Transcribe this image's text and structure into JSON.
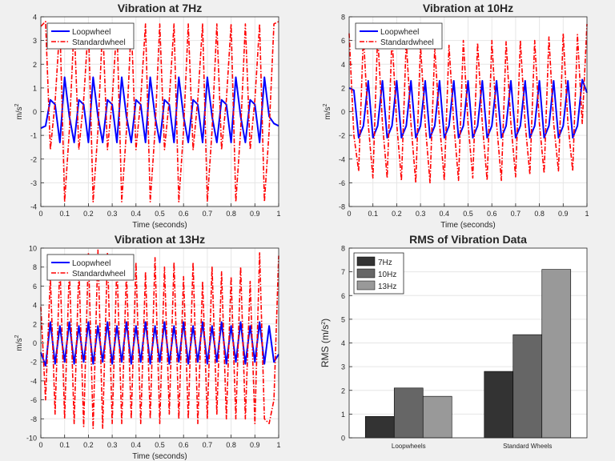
{
  "figure": {
    "background": "#f0f0f0"
  },
  "chart_data": [
    {
      "type": "line",
      "title": "Vibration at 7Hz",
      "xlabel": "Time (seconds)",
      "ylabel": "m/s",
      "ylabel_sup": "2",
      "xlim": [
        0,
        1
      ],
      "ylim": [
        -4,
        4
      ],
      "xticks": [
        0,
        0.1,
        0.2,
        0.3,
        0.4,
        0.5,
        0.6,
        0.7,
        0.8,
        0.9,
        1
      ],
      "yticks": [
        -4,
        -3,
        -2,
        -1,
        0,
        1,
        2,
        3,
        4
      ],
      "grid": true,
      "legend_position": "top-left",
      "series": [
        {
          "name": "Loopwheel",
          "color": "#0000ff",
          "style": "solid",
          "x": [
            0,
            0.02,
            0.04,
            0.06,
            0.08,
            0.1,
            0.12,
            0.14,
            0.16,
            0.18,
            0.2,
            0.22,
            0.24,
            0.26,
            0.28,
            0.3,
            0.32,
            0.34,
            0.36,
            0.38,
            0.4,
            0.42,
            0.44,
            0.46,
            0.48,
            0.5,
            0.52,
            0.54,
            0.56,
            0.58,
            0.6,
            0.62,
            0.64,
            0.66,
            0.68,
            0.7,
            0.72,
            0.74,
            0.76,
            0.78,
            0.8,
            0.82,
            0.84,
            0.86,
            0.88,
            0.9,
            0.92,
            0.94,
            0.96,
            0.98,
            1
          ],
          "y": [
            -0.7,
            -0.6,
            0.5,
            0.3,
            -1.3,
            1.45,
            -0.2,
            -1.3,
            0.5,
            0.3,
            -1.3,
            1.45,
            -0.2,
            -1.3,
            0.5,
            0.3,
            -1.3,
            1.45,
            -0.2,
            -1.3,
            0.5,
            0.3,
            -1.3,
            1.45,
            -0.2,
            -1.3,
            0.5,
            0.3,
            -1.3,
            1.45,
            -0.2,
            -1.3,
            0.5,
            0.3,
            -1.3,
            1.45,
            -0.2,
            -1.3,
            0.5,
            0.3,
            -1.3,
            1.45,
            -0.2,
            -1.3,
            0.5,
            0.3,
            -1.3,
            1.45,
            -0.2,
            -0.5,
            -0.6
          ]
        },
        {
          "name": "Standardwheel",
          "color": "#ff0000",
          "style": "dashdot",
          "x": [
            0,
            0.02,
            0.04,
            0.06,
            0.08,
            0.1,
            0.12,
            0.14,
            0.16,
            0.18,
            0.2,
            0.22,
            0.24,
            0.26,
            0.28,
            0.3,
            0.32,
            0.34,
            0.36,
            0.38,
            0.4,
            0.42,
            0.44,
            0.46,
            0.48,
            0.5,
            0.52,
            0.54,
            0.56,
            0.58,
            0.6,
            0.62,
            0.64,
            0.66,
            0.68,
            0.7,
            0.72,
            0.74,
            0.76,
            0.78,
            0.8,
            0.82,
            0.84,
            0.86,
            0.88,
            0.9,
            0.92,
            0.94,
            0.96,
            0.98,
            1
          ],
          "y": [
            3.6,
            3.8,
            -1.6,
            0.4,
            3.7,
            -3.8,
            -0.8,
            3.7,
            -1.6,
            0.5,
            3.7,
            -3.8,
            -0.8,
            3.7,
            -1.6,
            0.5,
            3.7,
            -3.8,
            -0.8,
            3.7,
            -1.6,
            0.5,
            3.7,
            -3.8,
            -0.8,
            3.7,
            -1.6,
            0.5,
            3.7,
            -3.8,
            -0.8,
            3.7,
            -1.6,
            0.5,
            3.7,
            -3.8,
            -0.8,
            3.7,
            -1.6,
            0.5,
            3.7,
            -3.8,
            -0.8,
            3.7,
            -1.6,
            0.5,
            3.7,
            -3.8,
            -0.8,
            3.7,
            3.8
          ]
        }
      ]
    },
    {
      "type": "line",
      "title": "Vibration at 10Hz",
      "xlabel": "Time (seconds)",
      "ylabel": "m/s",
      "ylabel_sup": "2",
      "xlim": [
        0,
        1
      ],
      "ylim": [
        -8,
        8
      ],
      "xticks": [
        0,
        0.1,
        0.2,
        0.3,
        0.4,
        0.5,
        0.6,
        0.7,
        0.8,
        0.9,
        1
      ],
      "yticks": [
        -8,
        -6,
        -4,
        -2,
        0,
        2,
        4,
        6,
        8
      ],
      "grid": true,
      "legend_position": "top-left",
      "series": [
        {
          "name": "Loopwheel",
          "color": "#0000ff",
          "style": "solid",
          "x": [
            0,
            0.02,
            0.04,
            0.06,
            0.08,
            0.1,
            0.12,
            0.14,
            0.16,
            0.18,
            0.2,
            0.22,
            0.24,
            0.26,
            0.28,
            0.3,
            0.32,
            0.34,
            0.36,
            0.38,
            0.4,
            0.42,
            0.44,
            0.46,
            0.48,
            0.5,
            0.52,
            0.54,
            0.56,
            0.58,
            0.6,
            0.62,
            0.64,
            0.66,
            0.68,
            0.7,
            0.72,
            0.74,
            0.76,
            0.78,
            0.8,
            0.82,
            0.84,
            0.86,
            0.88,
            0.9,
            0.92,
            0.94,
            0.96,
            0.98,
            1
          ],
          "y": [
            2,
            1.8,
            -2.2,
            -1.2,
            2.6,
            -2.2,
            -1.2,
            2.6,
            -2.2,
            -1.2,
            2.6,
            -2.2,
            -1.2,
            2.6,
            -2.2,
            -1.2,
            2.6,
            -2.2,
            -1.2,
            2.6,
            -2.2,
            -1.2,
            2.6,
            -2.2,
            -1.2,
            2.6,
            -2.2,
            -1.2,
            2.6,
            -2.2,
            -1.2,
            2.6,
            -2.2,
            -1.2,
            2.6,
            -2.2,
            -1.2,
            2.6,
            -2.2,
            -1.2,
            2.6,
            -2.2,
            -1.2,
            2.6,
            -2.2,
            -1.2,
            2.6,
            -2.2,
            -1.2,
            2.7,
            1.6
          ]
        },
        {
          "name": "Standardwheel",
          "color": "#ff0000",
          "style": "dashdot",
          "x": [
            0,
            0.02,
            0.04,
            0.06,
            0.08,
            0.1,
            0.12,
            0.14,
            0.16,
            0.18,
            0.2,
            0.22,
            0.24,
            0.26,
            0.28,
            0.3,
            0.32,
            0.34,
            0.36,
            0.38,
            0.4,
            0.42,
            0.44,
            0.46,
            0.48,
            0.5,
            0.52,
            0.54,
            0.56,
            0.58,
            0.6,
            0.62,
            0.64,
            0.66,
            0.68,
            0.7,
            0.72,
            0.74,
            0.76,
            0.78,
            0.8,
            0.82,
            0.84,
            0.86,
            0.88,
            0.9,
            0.92,
            0.94,
            0.96,
            0.98,
            1
          ],
          "y": [
            6.6,
            -2,
            -5,
            6.5,
            -1,
            -5.6,
            6.5,
            -1,
            -5.6,
            6.4,
            -1,
            -5.8,
            6,
            -1,
            -6,
            5.6,
            -1,
            -6,
            5.4,
            -1,
            -5.8,
            5.6,
            -1,
            -5.8,
            6,
            -1,
            -5.6,
            5.8,
            -1,
            -5.8,
            6,
            -1,
            -5.8,
            5.9,
            -1,
            -5.5,
            6,
            -1,
            -5.3,
            6,
            -1,
            -5.2,
            6.3,
            -1,
            -5,
            6.6,
            -1,
            -5,
            6.5,
            -1,
            7.4
          ]
        }
      ]
    },
    {
      "type": "line",
      "title": "Vibration at 13Hz",
      "xlabel": "Time (seconds)",
      "ylabel": "m/s",
      "ylabel_sup": "2",
      "xlim": [
        0,
        1
      ],
      "ylim": [
        -10,
        10
      ],
      "xticks": [
        0,
        0.1,
        0.2,
        0.3,
        0.4,
        0.5,
        0.6,
        0.7,
        0.8,
        0.9,
        1
      ],
      "yticks": [
        -10,
        -8,
        -6,
        -4,
        -2,
        0,
        2,
        4,
        6,
        8,
        10
      ],
      "grid": true,
      "legend_position": "top-left",
      "series": [
        {
          "name": "Loopwheel",
          "color": "#0000ff",
          "style": "solid",
          "x": [
            0,
            0.02,
            0.04,
            0.06,
            0.08,
            0.1,
            0.12,
            0.14,
            0.16,
            0.18,
            0.2,
            0.22,
            0.24,
            0.26,
            0.28,
            0.3,
            0.32,
            0.34,
            0.36,
            0.38,
            0.4,
            0.42,
            0.44,
            0.46,
            0.48,
            0.5,
            0.52,
            0.54,
            0.56,
            0.58,
            0.6,
            0.62,
            0.64,
            0.66,
            0.68,
            0.7,
            0.72,
            0.74,
            0.76,
            0.78,
            0.8,
            0.82,
            0.84,
            0.86,
            0.88,
            0.9,
            0.92,
            0.94,
            0.96,
            0.98,
            1
          ],
          "y": [
            -1,
            -2.4,
            2.2,
            -2.2,
            1.8,
            -2,
            2.2,
            -2.2,
            1.8,
            -2,
            2.2,
            -2.2,
            1.8,
            -2,
            2.2,
            -2.2,
            1.8,
            -2,
            2.2,
            -2.2,
            1.8,
            -2,
            2.2,
            -2.2,
            1.8,
            -2,
            2.2,
            -2.2,
            1.8,
            -2,
            2.2,
            -2.2,
            1.8,
            -2,
            2.2,
            -2.2,
            1.8,
            -2,
            2.2,
            -2.2,
            1.8,
            -2,
            2.2,
            -2.2,
            1.8,
            -2,
            2.2,
            -2.2,
            1.8,
            -2,
            -1.2
          ]
        },
        {
          "name": "Standardwheel",
          "color": "#ff0000",
          "style": "dashdot",
          "x": [
            0,
            0.02,
            0.04,
            0.06,
            0.08,
            0.1,
            0.12,
            0.14,
            0.16,
            0.18,
            0.2,
            0.22,
            0.24,
            0.26,
            0.28,
            0.3,
            0.32,
            0.34,
            0.36,
            0.38,
            0.4,
            0.42,
            0.44,
            0.46,
            0.48,
            0.5,
            0.52,
            0.54,
            0.56,
            0.58,
            0.6,
            0.62,
            0.64,
            0.66,
            0.68,
            0.7,
            0.72,
            0.74,
            0.76,
            0.78,
            0.8,
            0.82,
            0.84,
            0.86,
            0.88,
            0.9,
            0.92,
            0.94,
            0.96,
            0.98,
            1
          ],
          "y": [
            3.8,
            -6,
            7,
            -7.5,
            8.5,
            -8,
            8,
            -8.5,
            8,
            -8.8,
            9.5,
            -9,
            9.8,
            -9,
            9.5,
            -8.5,
            8.5,
            -8.5,
            7.5,
            -8,
            8.5,
            -8.5,
            7.5,
            -8,
            9,
            -8.5,
            8,
            -7.5,
            8.5,
            -8,
            7,
            -8,
            8.5,
            -8.5,
            6.5,
            -8,
            8,
            -7.5,
            7.5,
            -8,
            7,
            -8,
            8,
            -8,
            6.5,
            -8.5,
            9.5,
            -8,
            -8.5,
            -6,
            9.2
          ]
        }
      ]
    },
    {
      "type": "bar",
      "title": "RMS of Vibration Data",
      "ylabel": "RMS (m/s",
      "ylabel_sup": "2",
      "ylabel_close": ")",
      "categories": [
        "Loopwheels",
        "Standard Wheels"
      ],
      "ylim": [
        0,
        8
      ],
      "yticks": [
        0,
        1,
        2,
        3,
        4,
        5,
        6,
        7,
        8
      ],
      "grid": "y",
      "legend_position": "top-left",
      "series": [
        {
          "name": "7Hz",
          "color": "#333333",
          "values": [
            0.9,
            2.8
          ]
        },
        {
          "name": "10Hz",
          "color": "#666666",
          "values": [
            2.1,
            4.35
          ]
        },
        {
          "name": "13Hz",
          "color": "#999999",
          "values": [
            1.75,
            7.1
          ]
        }
      ]
    }
  ]
}
